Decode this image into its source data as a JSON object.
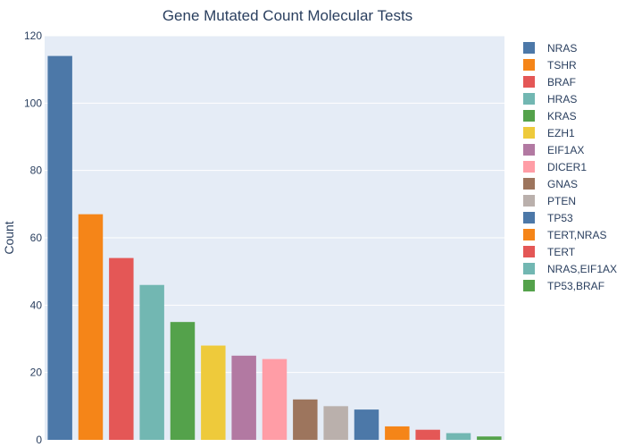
{
  "chart_data": {
    "type": "bar",
    "title": "Gene Mutated Count Molecular Tests",
    "xlabel": "",
    "ylabel": "Count",
    "ylim": [
      0,
      120
    ],
    "yticks": [
      0,
      20,
      40,
      60,
      80,
      100,
      120
    ],
    "grid": true,
    "legend_position": "right",
    "series": [
      {
        "name": "NRAS",
        "value": 114,
        "color": "#4c78a8"
      },
      {
        "name": "TSHR",
        "value": 67,
        "color": "#f58518"
      },
      {
        "name": "BRAF",
        "value": 54,
        "color": "#e45756"
      },
      {
        "name": "HRAS",
        "value": 46,
        "color": "#72b7b2"
      },
      {
        "name": "KRAS",
        "value": 35,
        "color": "#54a24b"
      },
      {
        "name": "EZH1",
        "value": 28,
        "color": "#eeca3b"
      },
      {
        "name": "EIF1AX",
        "value": 25,
        "color": "#b279a2"
      },
      {
        "name": "DICER1",
        "value": 24,
        "color": "#ff9da6"
      },
      {
        "name": "GNAS",
        "value": 12,
        "color": "#9d755d"
      },
      {
        "name": "PTEN",
        "value": 10,
        "color": "#bab0ac"
      },
      {
        "name": "TP53",
        "value": 9,
        "color": "#4c78a8"
      },
      {
        "name": "TERT,NRAS",
        "value": 4,
        "color": "#f58518"
      },
      {
        "name": "TERT",
        "value": 3,
        "color": "#e45756"
      },
      {
        "name": "NRAS,EIF1AX",
        "value": 2,
        "color": "#72b7b2"
      },
      {
        "name": "TP53,BRAF",
        "value": 1,
        "color": "#54a24b"
      }
    ]
  },
  "colors": {
    "plot_background": "#e5ecf6",
    "grid": "#ffffff",
    "text": "#2a3f5f"
  }
}
